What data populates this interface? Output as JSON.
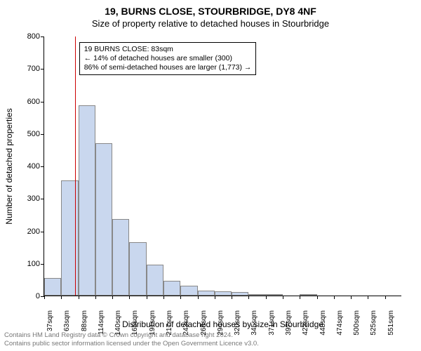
{
  "supertitle": "19, BURNS CLOSE, STOURBRIDGE, DY8 4NF",
  "title": "Size of property relative to detached houses in Stourbridge",
  "chart": {
    "type": "histogram",
    "ylabel": "Number of detached properties",
    "xlabel": "Distribution of detached houses by size in Stourbridge",
    "bar_fill": "#c9d7ee",
    "bar_border": "#888888",
    "marker_line_color": "#cc0000",
    "ymax": 800,
    "ytick_step": 100,
    "categories": [
      "37sqm",
      "63sqm",
      "88sqm",
      "114sqm",
      "140sqm",
      "165sqm",
      "191sqm",
      "217sqm",
      "243sqm",
      "268sqm",
      "294sqm",
      "320sqm",
      "345sqm",
      "371sqm",
      "397sqm",
      "422sqm",
      "448sqm",
      "474sqm",
      "500sqm",
      "525sqm",
      "551sqm"
    ],
    "values": [
      55,
      355,
      585,
      470,
      235,
      165,
      95,
      45,
      30,
      15,
      12,
      10,
      5,
      3,
      0,
      3,
      0,
      0,
      0,
      0,
      0
    ],
    "marker_between_index": [
      1,
      2
    ],
    "annotation": {
      "line1": "19 BURNS CLOSE: 83sqm",
      "line2": "← 14% of detached houses are smaller (300)",
      "line3": "86% of semi-detached houses are larger (1,773) →"
    }
  },
  "footer": {
    "line1": "Contains HM Land Registry data © Crown copyright and database right 2024.",
    "line2": "Contains public sector information licensed under the Open Government Licence v3.0."
  }
}
